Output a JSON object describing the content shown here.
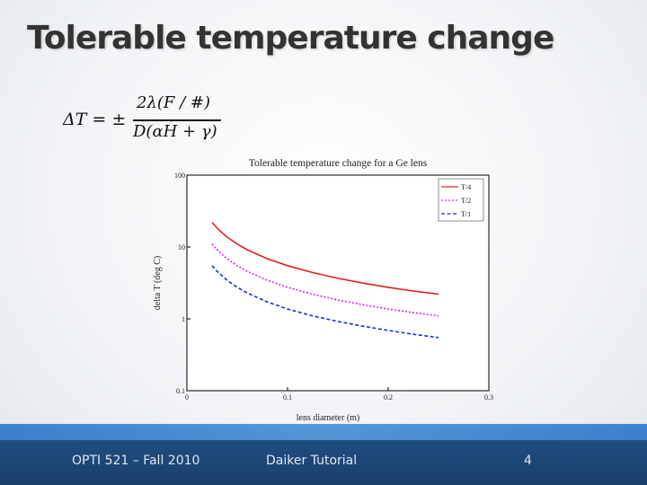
{
  "slide": {
    "title": "Tolerable temperature change",
    "equation": {
      "lhs": "ΔT = ±",
      "numerator": "2λ(F / #)",
      "denominator": "D(αH + γ)"
    }
  },
  "footer": {
    "course": "OPTI 521 – Fall 2010",
    "author": "Daiker Tutorial",
    "page": "4"
  },
  "chart_data": {
    "type": "line",
    "title": "Tolerable temperature change for a Ge lens",
    "xlabel": "lens diameter (m)",
    "ylabel": "delta T (deg C)",
    "xlim": [
      0,
      0.3
    ],
    "ylim": [
      0.1,
      100
    ],
    "yscale": "log",
    "grid": false,
    "legend_position": "top-right",
    "x_tick_labels": [
      "0",
      "0.1",
      "0.2",
      "0.3"
    ],
    "y_tick_labels": [
      "0.1",
      "1",
      "10",
      "100"
    ],
    "x": [
      0.025,
      0.03,
      0.04,
      0.05,
      0.06,
      0.08,
      0.1,
      0.125,
      0.15,
      0.175,
      0.2,
      0.225,
      0.25
    ],
    "series": [
      {
        "name": "T/4",
        "color": "#e02020",
        "dash": "solid",
        "values": [
          22,
          18.3,
          13.7,
          11,
          9.15,
          6.86,
          5.5,
          4.4,
          3.66,
          3.14,
          2.75,
          2.44,
          2.2
        ]
      },
      {
        "name": "T/2",
        "color": "#e020e0",
        "dash": "dotted",
        "values": [
          11,
          9.15,
          6.86,
          5.5,
          4.58,
          3.43,
          2.75,
          2.2,
          1.83,
          1.57,
          1.37,
          1.22,
          1.1
        ]
      },
      {
        "name": "T/1",
        "color": "#1a2fd0",
        "dash": "dashed",
        "values": [
          5.5,
          4.58,
          3.43,
          2.75,
          2.29,
          1.72,
          1.37,
          1.1,
          0.92,
          0.79,
          0.69,
          0.61,
          0.55
        ]
      }
    ]
  }
}
